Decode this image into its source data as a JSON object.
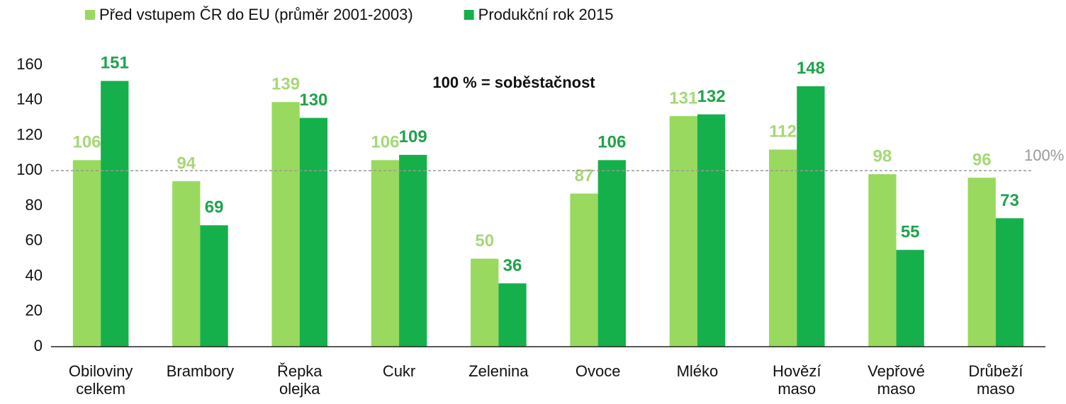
{
  "chart_data": {
    "type": "bar",
    "annotation": "100 % = soběstačnost",
    "reference_line": {
      "value": 100,
      "label": "100%"
    },
    "categories": [
      "Obiloviny celkem",
      "Brambory",
      "Řepka olejka",
      "Cukr",
      "Zelenina",
      "Ovoce",
      "Mléko",
      "Hovězí maso",
      "Vepřové maso",
      "Drůbeží maso"
    ],
    "series": [
      {
        "name": "Před vstupem ČR do EU (průměr 2001-2003)",
        "color": "#99d95f",
        "label_color": "#a5d877",
        "values": [
          106,
          94,
          139,
          106,
          50,
          87,
          131,
          112,
          98,
          96
        ]
      },
      {
        "name": "Produkční rok 2015",
        "color": "#15b04b",
        "label_color": "#1fa34c",
        "values": [
          151,
          69,
          130,
          109,
          36,
          106,
          132,
          148,
          55,
          73
        ]
      }
    ],
    "ylim": [
      0,
      160
    ],
    "yticks": [
      0,
      20,
      40,
      60,
      80,
      100,
      120,
      140,
      160
    ],
    "grid": false,
    "legend": "top-left"
  }
}
